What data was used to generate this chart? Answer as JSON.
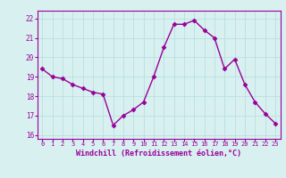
{
  "x": [
    0,
    1,
    2,
    3,
    4,
    5,
    6,
    7,
    8,
    9,
    10,
    11,
    12,
    13,
    14,
    15,
    16,
    17,
    18,
    19,
    20,
    21,
    22,
    23
  ],
  "y": [
    19.4,
    19.0,
    18.9,
    18.6,
    18.4,
    18.2,
    18.1,
    16.5,
    17.0,
    17.3,
    17.7,
    19.0,
    20.5,
    21.7,
    21.7,
    21.9,
    21.4,
    21.0,
    19.4,
    19.9,
    18.6,
    17.7,
    17.1,
    16.6
  ],
  "line_color": "#990099",
  "marker": "D",
  "marker_size": 2.5,
  "bg_color": "#d8f0f0",
  "grid_color": "#b8e0e0",
  "xlabel": "Windchill (Refroidissement éolien,°C)",
  "xlabel_color": "#990099",
  "tick_color": "#990099",
  "ylim": [
    15.8,
    22.4
  ],
  "xlim": [
    -0.5,
    23.5
  ],
  "yticks": [
    16,
    17,
    18,
    19,
    20,
    21,
    22
  ],
  "xticks": [
    0,
    1,
    2,
    3,
    4,
    5,
    6,
    7,
    8,
    9,
    10,
    11,
    12,
    13,
    14,
    15,
    16,
    17,
    18,
    19,
    20,
    21,
    22,
    23
  ],
  "spine_color": "#990099",
  "line_width": 1.0
}
